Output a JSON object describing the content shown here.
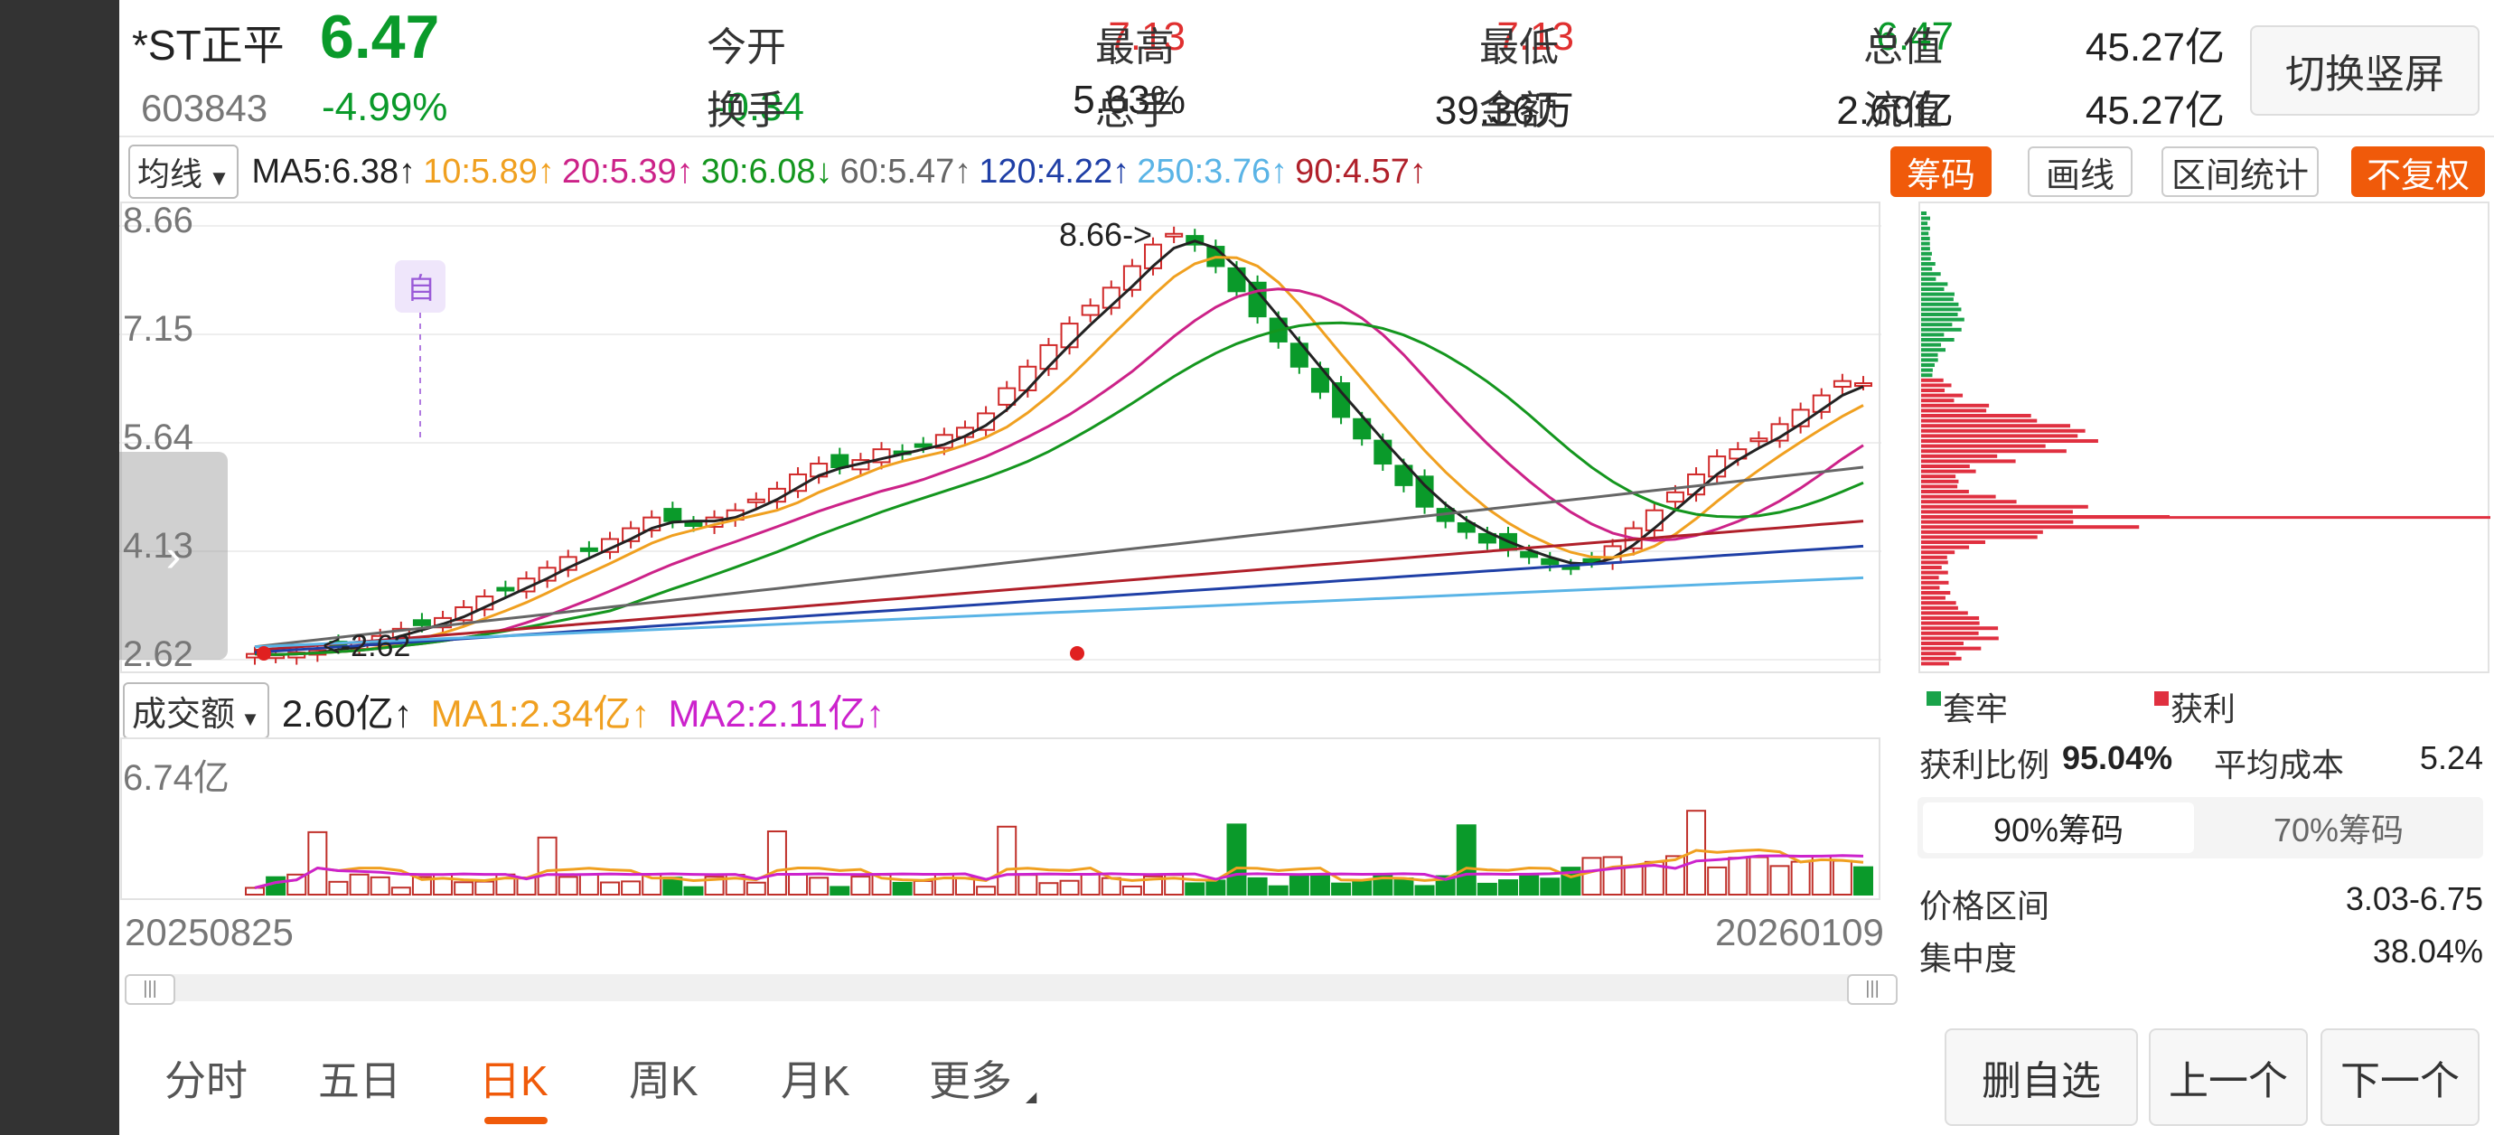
{
  "stock": {
    "name": "*ST正平",
    "code": "603843",
    "price": "6.47",
    "change_pct": "-4.99%",
    "change": "-0.34"
  },
  "quote": {
    "open_label": "今开",
    "open": "7.13",
    "high_label": "最高",
    "high": "7.13",
    "low_label": "最低",
    "low": "6.47",
    "mcap_label": "总值",
    "mcap": "45.27亿",
    "turnover_label": "换手",
    "turnover": "5.63%",
    "volume_label": "总手",
    "volume": "39.36万",
    "amount_label": "金额",
    "amount": "2.60亿",
    "float_label": "流值",
    "float": "45.27亿"
  },
  "switch_button": "切换竖屏",
  "ma_bar": {
    "selector": "均线",
    "items": [
      {
        "text": "MA5:6.38↑",
        "color": "#222222"
      },
      {
        "text": "10:5.89↑",
        "color": "#f0a020"
      },
      {
        "text": "20:5.39↑",
        "color": "#cc2288"
      },
      {
        "text": "30:6.08↓",
        "color": "#14961e"
      },
      {
        "text": "60:5.47↑",
        "color": "#666666"
      },
      {
        "text": "120:4.22↑",
        "color": "#1f3fa6"
      },
      {
        "text": "250:3.76↑",
        "color": "#5ab4e6"
      },
      {
        "text": "90:4.57↑",
        "color": "#b0202a"
      }
    ]
  },
  "right_tabs": {
    "chips": "筹码",
    "draw": "画线",
    "range": "区间统计",
    "adjust": "不复权"
  },
  "price_axis": [
    "8.66",
    "7.15",
    "5.64",
    "4.13",
    "2.62"
  ],
  "annotations": {
    "high_mark": "8.66->",
    "low_mark": "<-2.62",
    "auto_tag": "自"
  },
  "volume_bar": {
    "selector": "成交额",
    "value": "2.60亿↑",
    "ma1": "MA1:2.34亿↑",
    "ma2": "MA2:2.11亿↑",
    "axis_top": "6.74亿"
  },
  "date_range": {
    "start": "20250825",
    "end": "20260109"
  },
  "chips_panel": {
    "legend_trapped": "套牢",
    "legend_profit": "获利",
    "profit_ratio_label": "获利比例",
    "profit_ratio": "95.04%",
    "avg_cost_label": "平均成本",
    "avg_cost": "5.24",
    "tab90": "90%筹码",
    "tab70": "70%筹码",
    "range_label": "价格区间",
    "range": "3.03-6.75",
    "concentration_label": "集中度",
    "concentration": "38.04%"
  },
  "bottom_tabs": [
    "分时",
    "五日",
    "日K",
    "周K",
    "月K",
    "更多"
  ],
  "active_tab": "日K",
  "bottom_buttons": {
    "remove": "删自选",
    "prev": "上一个",
    "next": "下一个"
  },
  "colors": {
    "up": "#e03030",
    "down": "#0a9a2a",
    "accent": "#f05a0a"
  },
  "chart_data": {
    "type": "candlestick",
    "y_ticks": [
      8.66,
      7.15,
      5.64,
      4.13,
      2.62
    ],
    "ylim": [
      2.62,
      8.66
    ],
    "high": 8.66,
    "low": 2.62,
    "x_start": "20250825",
    "x_end": "20260109",
    "closes": [
      2.7,
      2.68,
      2.72,
      2.75,
      2.8,
      2.85,
      2.95,
      3.05,
      3.1,
      3.2,
      3.35,
      3.5,
      3.6,
      3.75,
      3.9,
      4.05,
      4.15,
      4.3,
      4.45,
      4.6,
      4.55,
      4.5,
      4.6,
      4.7,
      4.85,
      5.0,
      5.2,
      5.35,
      5.3,
      5.4,
      5.55,
      5.5,
      5.6,
      5.75,
      5.85,
      6.05,
      6.4,
      6.7,
      7.0,
      7.3,
      7.55,
      7.8,
      8.1,
      8.4,
      8.55,
      8.4,
      8.1,
      7.75,
      7.4,
      7.05,
      6.7,
      6.35,
      6.0,
      5.7,
      5.35,
      5.05,
      4.75,
      4.55,
      4.4,
      4.25,
      4.15,
      4.05,
      3.95,
      3.9,
      4.0,
      4.2,
      4.45,
      4.7,
      4.95,
      5.2,
      5.45,
      5.55,
      5.7,
      5.9,
      6.1,
      6.3,
      6.5,
      6.47
    ],
    "turnover_ma1": "2.34亿",
    "turnover_ma2": "2.11亿"
  }
}
